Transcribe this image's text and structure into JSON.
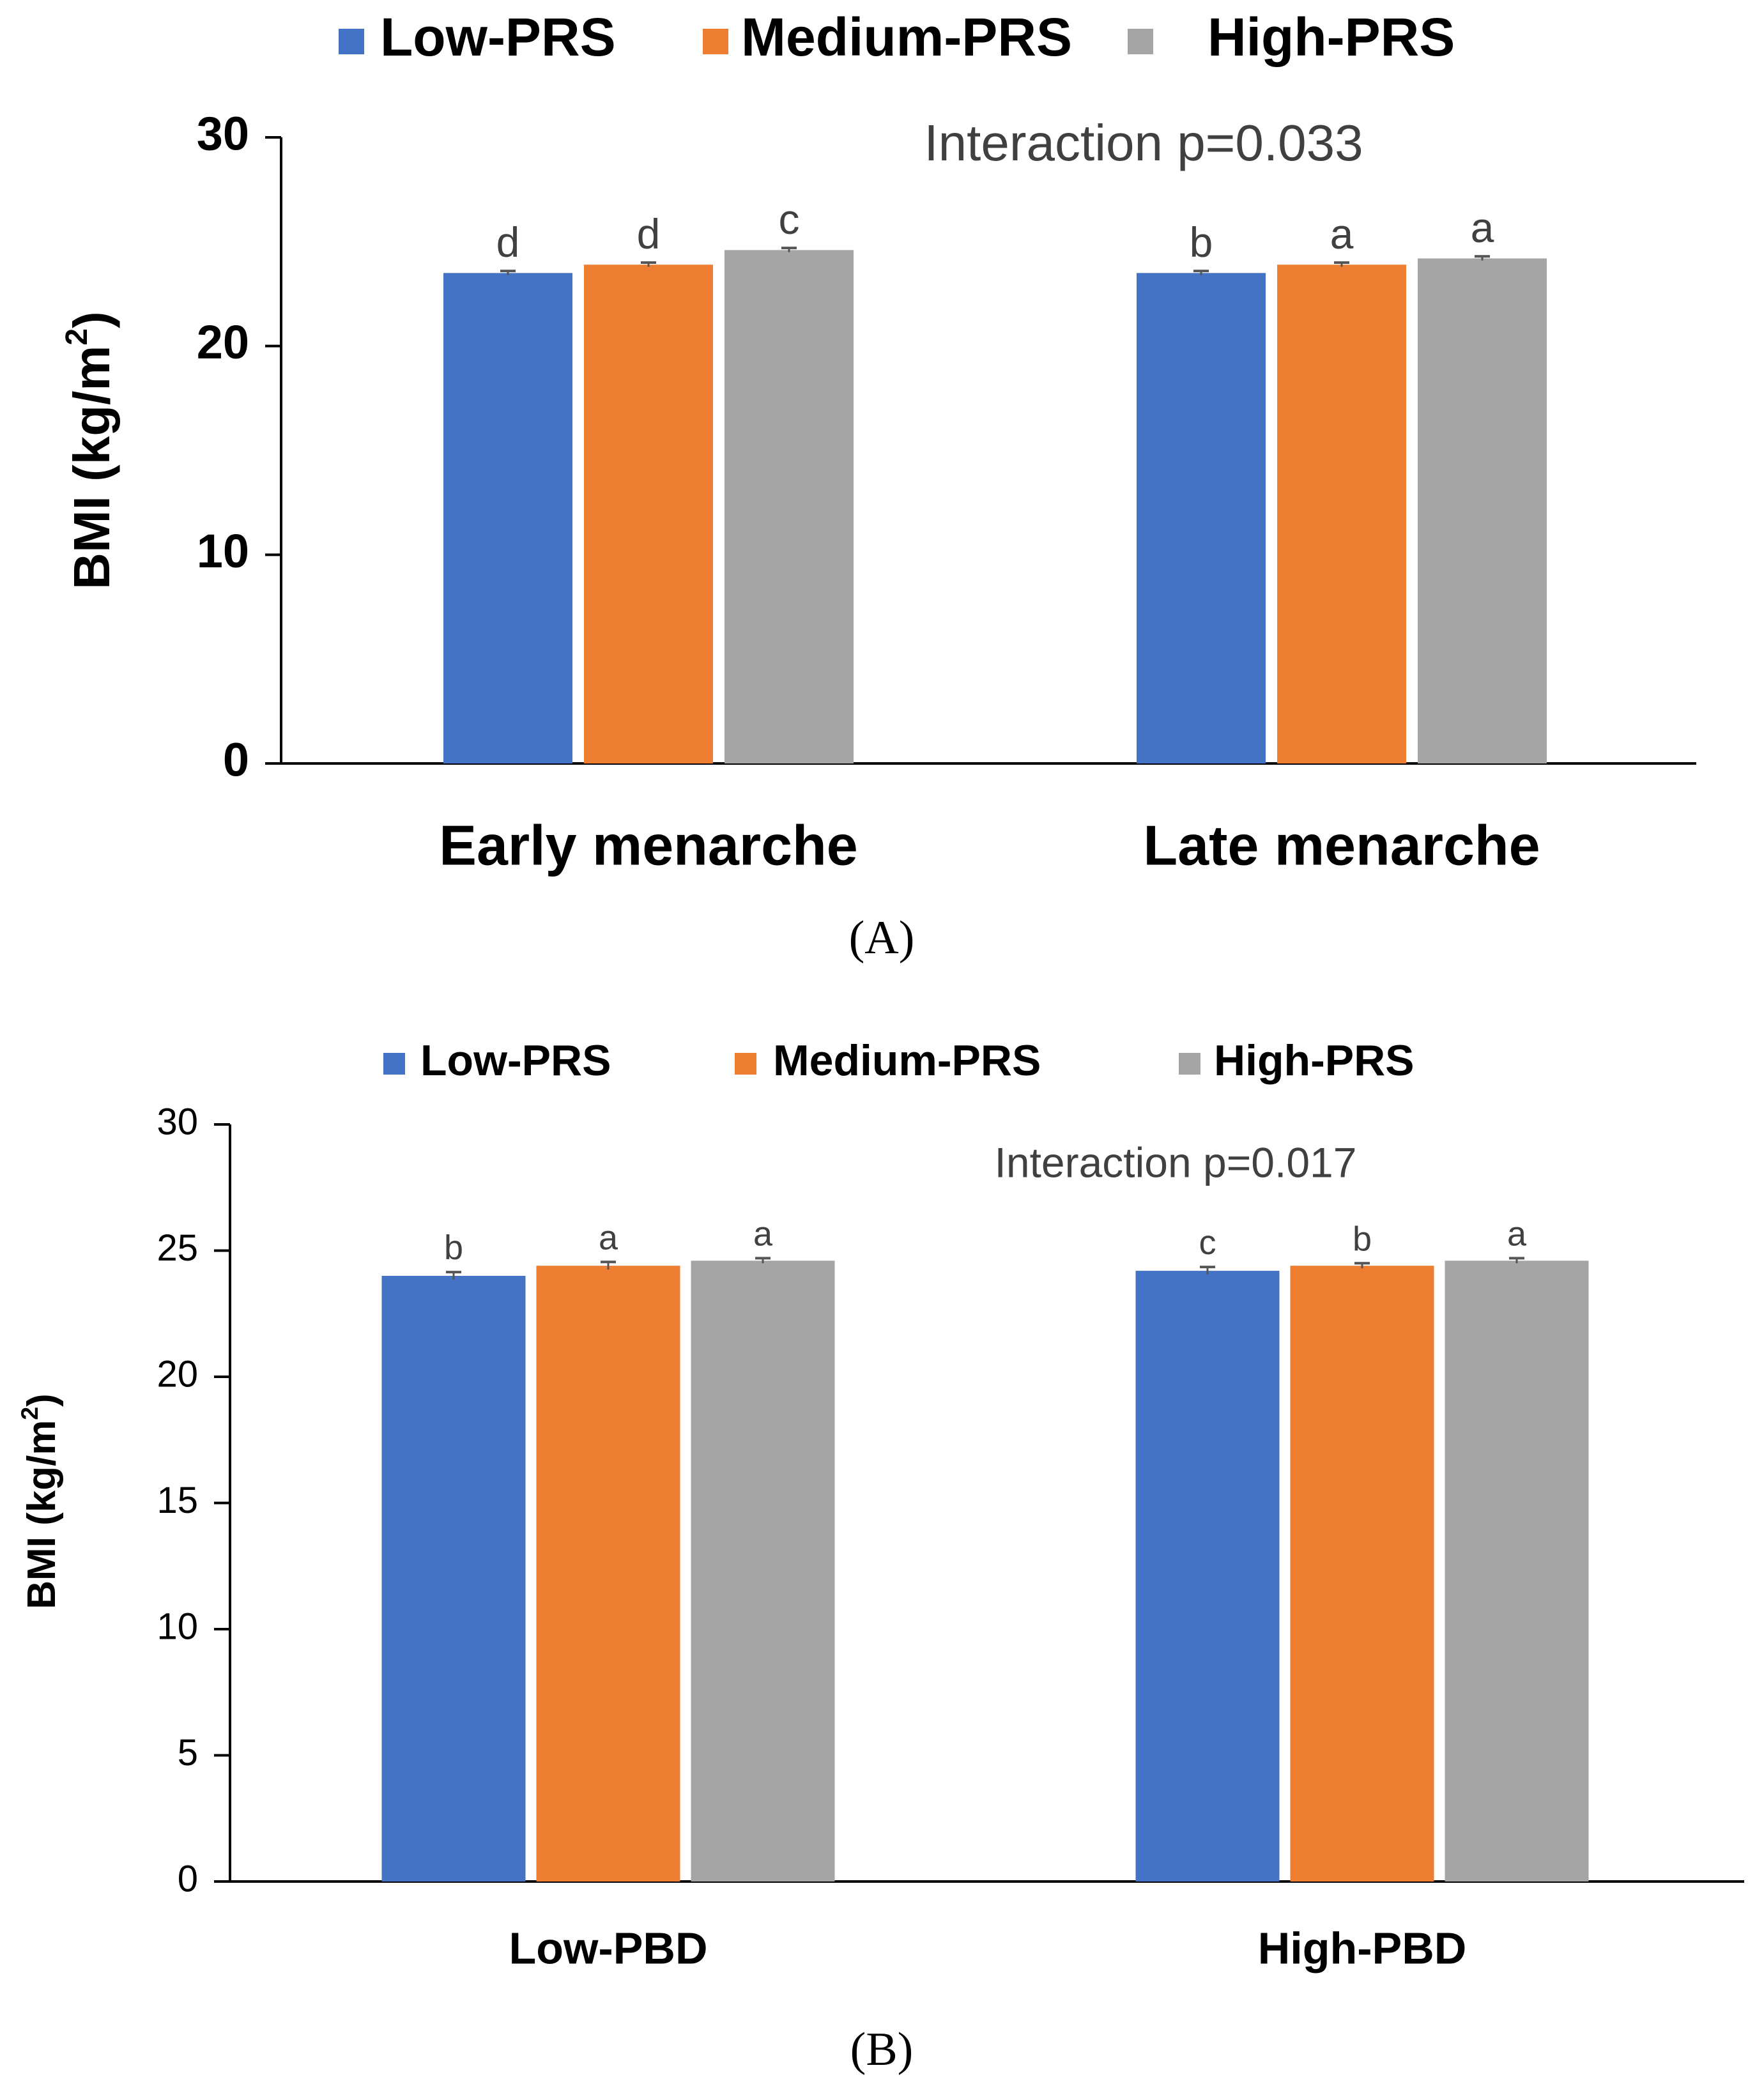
{
  "colors": {
    "low": "#4472C4",
    "medium": "#ED7D31",
    "high": "#A5A5A5",
    "axis": "#000000",
    "text": "#000000",
    "annotation": "#404040"
  },
  "chart_data": [
    {
      "type": "bar",
      "panel_label": "(A)",
      "legend_position": "top",
      "annotation": "Interaction p=0.033",
      "ylabel": "BMI (kg/m²)",
      "ylim": [
        0,
        30
      ],
      "yticks": [
        0,
        10,
        20,
        30
      ],
      "grid": false,
      "categories": [
        "Early menarche",
        "Late menarche"
      ],
      "series": [
        {
          "name": "Low-PRS",
          "color": "#4472C4",
          "values": [
            23.5,
            23.5
          ],
          "errors": [
            0.1,
            0.1
          ],
          "letters": [
            "d",
            "b"
          ]
        },
        {
          "name": "Medium-PRS",
          "color": "#ED7D31",
          "values": [
            23.9,
            23.9
          ],
          "errors": [
            0.1,
            0.1
          ],
          "letters": [
            "d",
            "a"
          ]
        },
        {
          "name": "High-PRS",
          "color": "#A5A5A5",
          "values": [
            24.6,
            24.2
          ],
          "errors": [
            0.1,
            0.1
          ],
          "letters": [
            "c",
            "a"
          ]
        }
      ]
    },
    {
      "type": "bar",
      "panel_label": "(B)",
      "legend_position": "top",
      "annotation": "Interaction p=0.017",
      "ylabel": "BMI (kg/m²)",
      "ylim": [
        0,
        30
      ],
      "yticks": [
        0,
        5,
        10,
        15,
        20,
        25,
        30
      ],
      "grid": false,
      "categories": [
        "Low-PBD",
        "High-PBD"
      ],
      "series": [
        {
          "name": "Low-PRS",
          "color": "#4472C4",
          "values": [
            24.0,
            24.2
          ],
          "errors": [
            0.15,
            0.15
          ],
          "letters": [
            "b",
            "c"
          ]
        },
        {
          "name": "Medium-PRS",
          "color": "#ED7D31",
          "values": [
            24.4,
            24.4
          ],
          "errors": [
            0.15,
            0.1
          ],
          "letters": [
            "a",
            "b"
          ]
        },
        {
          "name": "High-PRS",
          "color": "#A5A5A5",
          "values": [
            24.6,
            24.6
          ],
          "errors": [
            0.1,
            0.1
          ],
          "letters": [
            "a",
            "a"
          ]
        }
      ]
    }
  ]
}
